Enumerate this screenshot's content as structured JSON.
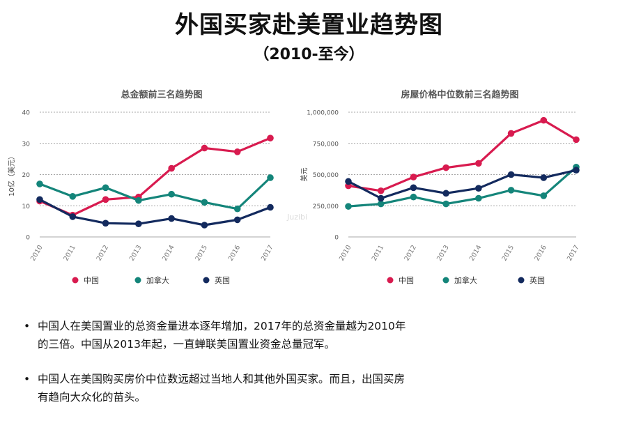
{
  "title": "外国买家赴美置业趋势图",
  "subtitle": "（2010-至今）",
  "chart_data": [
    {
      "type": "line",
      "title": "总金额前三名趋势图",
      "ylabel": "10亿（美元）",
      "xlabel": "",
      "x": [
        "2010",
        "2011",
        "2012",
        "2013",
        "2014",
        "2015",
        "2016",
        "2017"
      ],
      "ylim": [
        0,
        40
      ],
      "yticks": [
        0,
        10,
        20,
        30,
        40
      ],
      "ytick_labels": [
        "0",
        "10",
        "20",
        "30",
        "40"
      ],
      "grid": true,
      "legend_position": "bottom",
      "series": [
        {
          "name": "中国",
          "color": "#d81b4f",
          "values": [
            11.5,
            7,
            12,
            12.8,
            22,
            28.5,
            27.3,
            31.7
          ]
        },
        {
          "name": "加拿大",
          "color": "#14857a",
          "values": [
            17,
            13,
            15.8,
            11.7,
            13.7,
            11.1,
            9,
            19
          ]
        },
        {
          "name": "英国",
          "color": "#132a5e",
          "values": [
            12,
            6.5,
            4.4,
            4.2,
            5.9,
            3.8,
            5.5,
            9.5
          ]
        }
      ]
    },
    {
      "type": "line",
      "title": "房屋价格中位数前三名趋势图",
      "ylabel": "美元",
      "xlabel": "",
      "x": [
        "2010",
        "2011",
        "2012",
        "2013",
        "2014",
        "2015",
        "2016",
        "2017"
      ],
      "ylim": [
        0,
        1000000
      ],
      "yticks": [
        0,
        250000,
        500000,
        750000,
        1000000
      ],
      "ytick_labels": [
        "0",
        "250,000",
        "500,000",
        "750,000",
        "1,000,000"
      ],
      "grid": true,
      "legend_position": "bottom",
      "series": [
        {
          "name": "中国",
          "color": "#d81b4f",
          "values": [
            410000,
            370000,
            480000,
            555000,
            590000,
            830000,
            935000,
            780000
          ]
        },
        {
          "name": "加拿大",
          "color": "#14857a",
          "values": [
            245000,
            265000,
            320000,
            265000,
            310000,
            375000,
            330000,
            560000
          ]
        },
        {
          "name": "英国",
          "color": "#132a5e",
          "values": [
            445000,
            310000,
            395000,
            350000,
            390000,
            500000,
            475000,
            535000
          ]
        }
      ]
    }
  ],
  "watermark": {
    "text": "Juzibian",
    "color": "#dcdcdc"
  },
  "bullets": [
    {
      "marker": "•",
      "text": "中国人在美国置业的总资金量进本逐年增加，2017年的总资金量越为2010年的三倍。中国从2013年起，一直蝉联美国置业资金总量冠军。"
    },
    {
      "marker": "•",
      "text": "中国人在美国购买房价中位数远超过当地人和其他外国买家。而且，出国买房有趋向大众化的苗头。"
    }
  ]
}
